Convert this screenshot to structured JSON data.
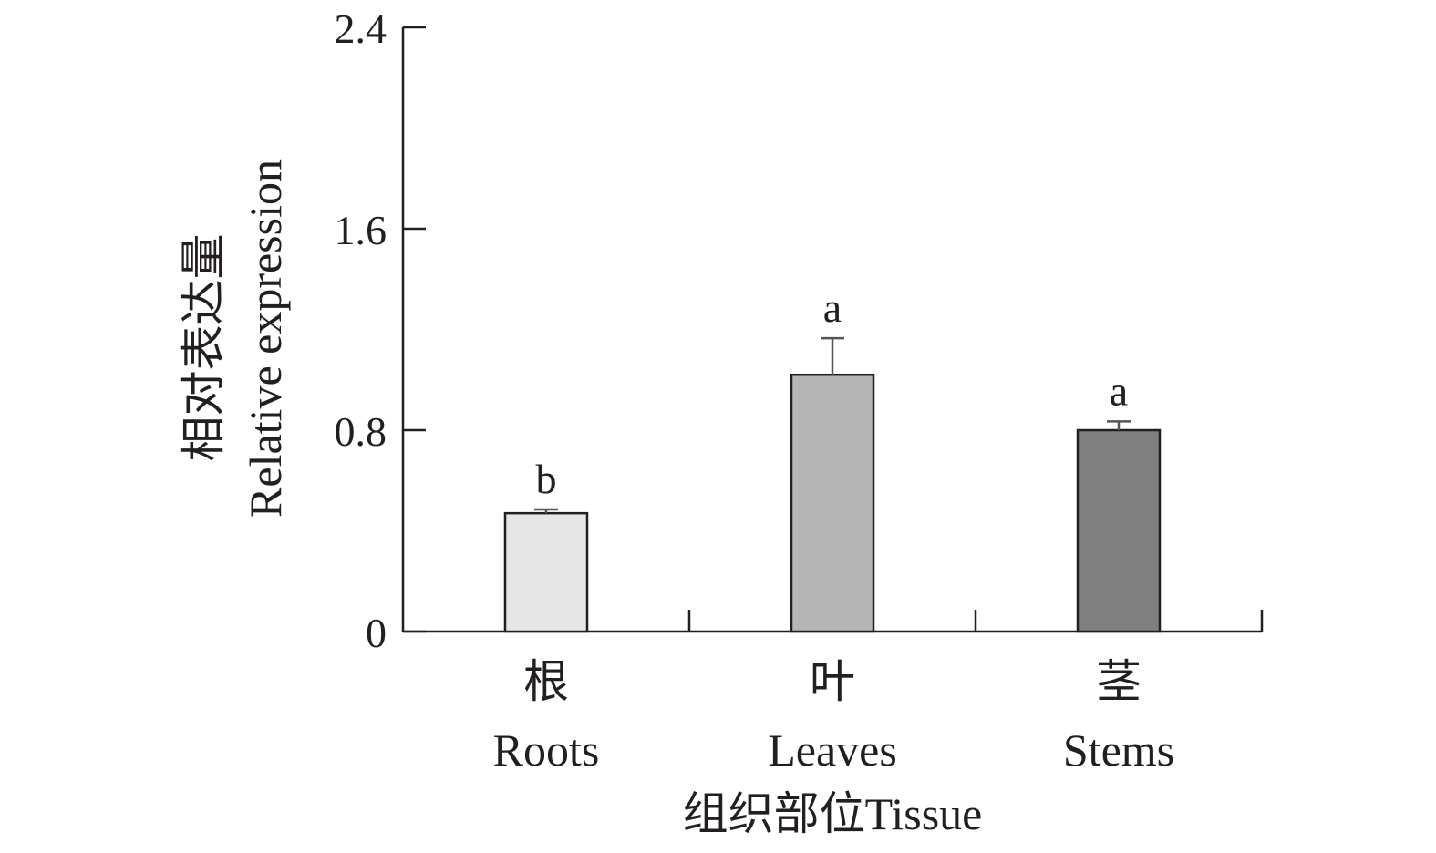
{
  "chart_data": {
    "type": "bar",
    "categories": [
      {
        "zh": "根",
        "en": "Roots"
      },
      {
        "zh": "叶",
        "en": "Leaves"
      },
      {
        "zh": "茎",
        "en": "Stems"
      }
    ],
    "values": [
      0.47,
      1.02,
      0.8
    ],
    "errors": [
      0.015,
      0.145,
      0.035
    ],
    "significance": [
      "b",
      "a",
      "a"
    ],
    "bar_colors": [
      "#e6e6e6",
      "#b5b5b5",
      "#808080"
    ],
    "ylabel_zh": "相对表达量",
    "ylabel_en": "Relative expression",
    "xlabel": "组织部位Tissue",
    "ylim": [
      0,
      2.4
    ],
    "yticks": [
      0,
      0.8,
      1.6,
      2.4
    ],
    "ytick_labels": [
      "0",
      "0.8",
      "1.6",
      "2.4"
    ],
    "grid": false,
    "legend": "none"
  }
}
